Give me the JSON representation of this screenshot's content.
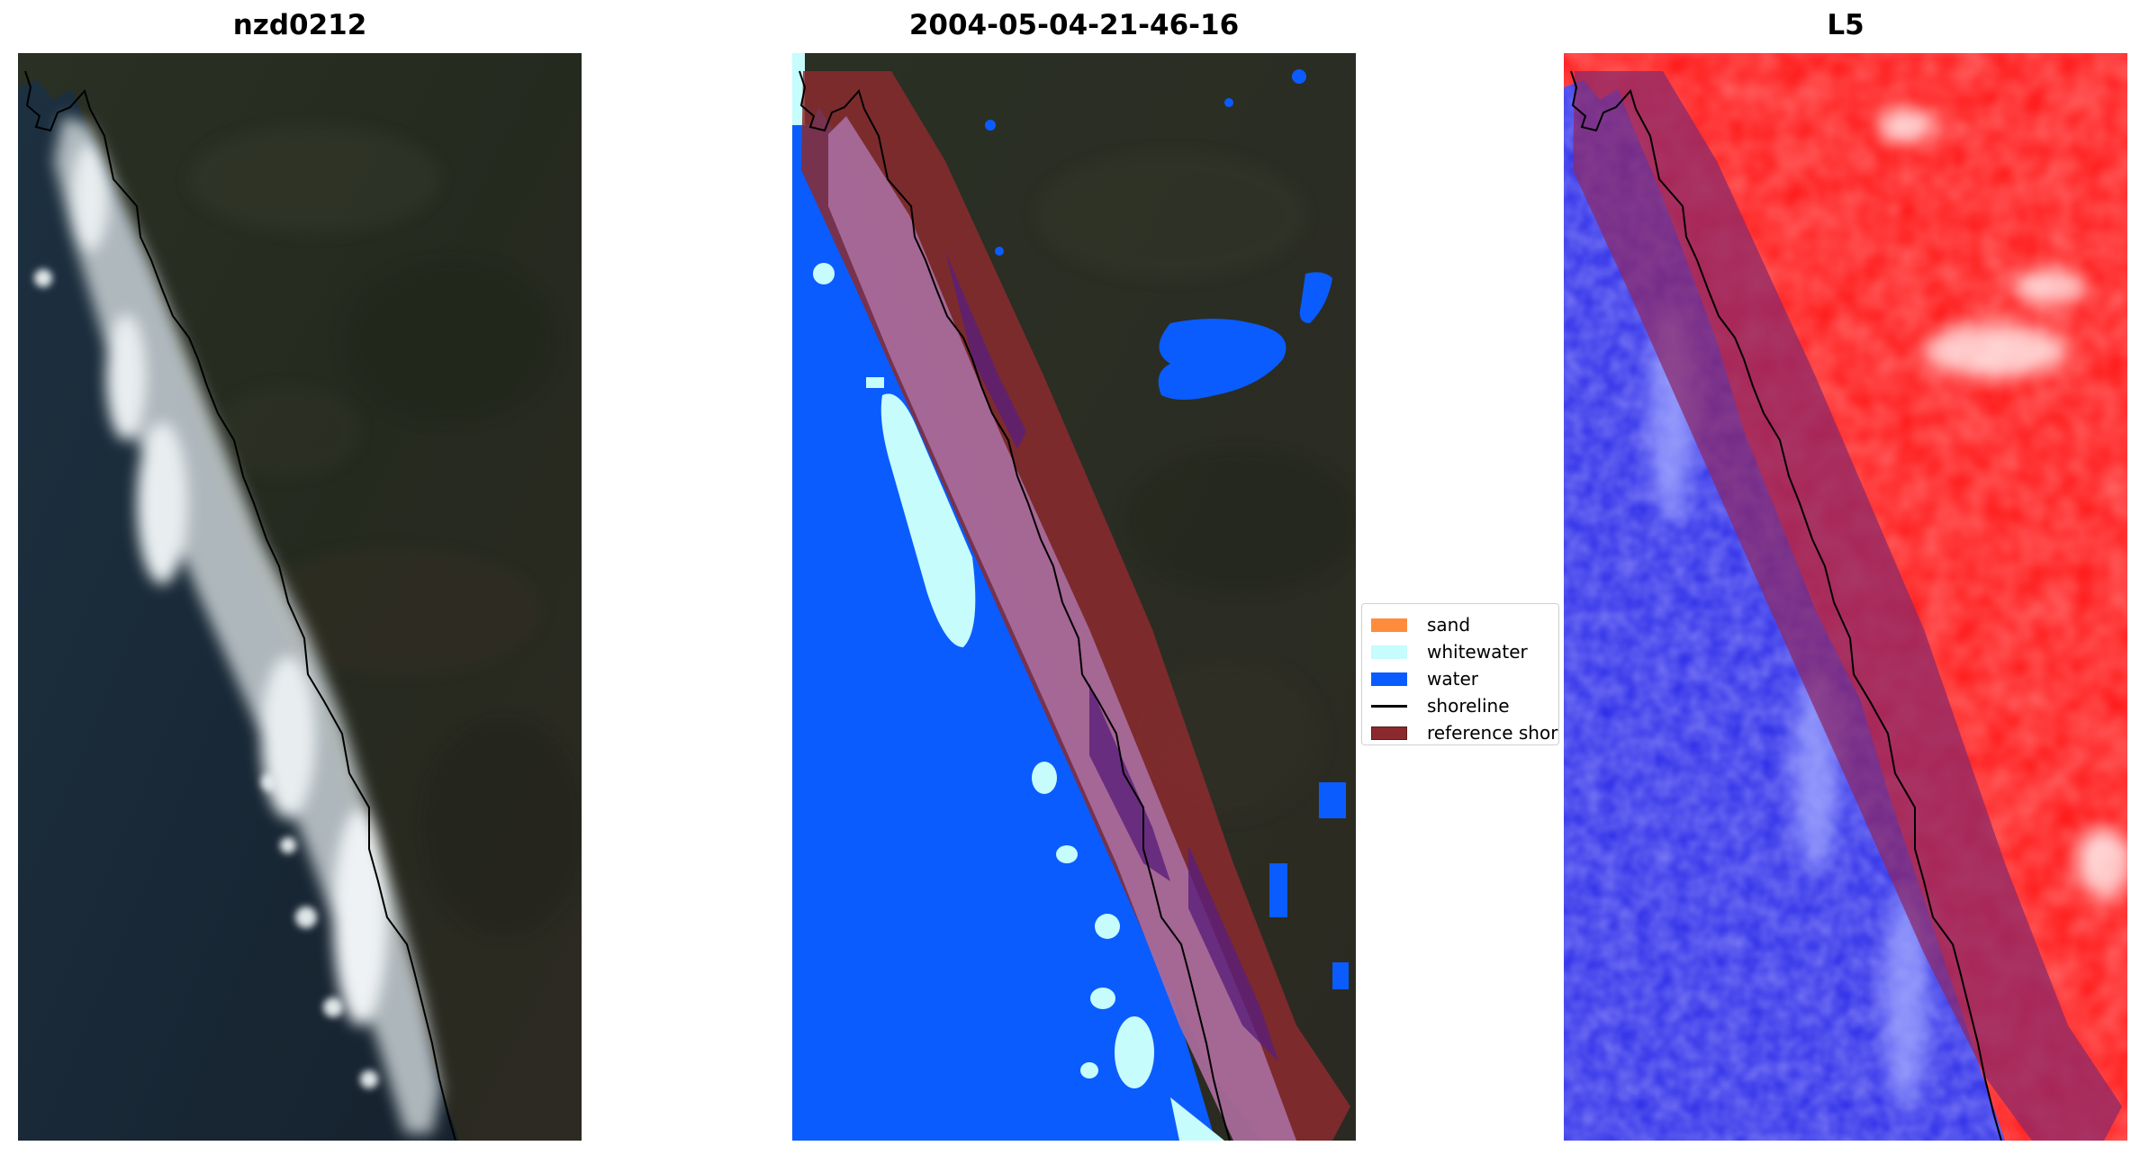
{
  "panels": [
    {
      "title": "nzd0212"
    },
    {
      "title": "2004-05-04-21-46-16"
    },
    {
      "title": "L5"
    }
  ],
  "legend": {
    "items": [
      {
        "label": "sand",
        "color": "#ff8c3c"
      },
      {
        "label": "whitewater",
        "color": "#c6fcfc"
      },
      {
        "label": "water",
        "color": "#0a5cff"
      },
      {
        "label": "shoreline",
        "color": "#000000"
      },
      {
        "label": "reference shoreline buffer",
        "color": "#8b2a2e"
      }
    ]
  },
  "colors": {
    "land_dark": "#22281f",
    "sea_dark": "#1a2a38",
    "surf": "#e8eef0",
    "buffer": "#8b2a2e",
    "water_class": "#0a5cff",
    "whitewater_class": "#c6fcfc",
    "index_positive": "#ff1010",
    "index_negative": "#2828e6"
  }
}
